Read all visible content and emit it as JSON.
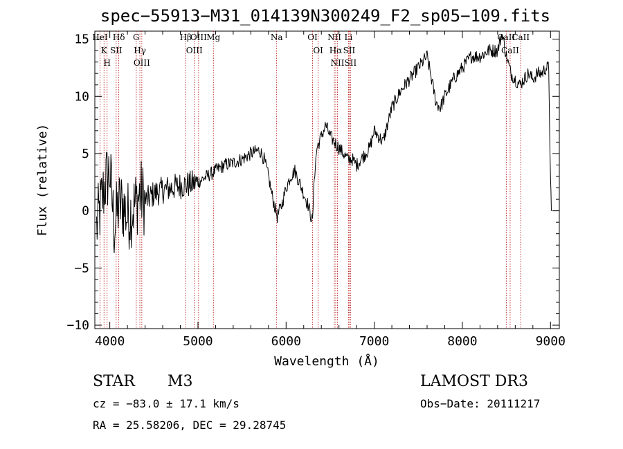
{
  "chart_data": {
    "type": "line",
    "title": "spec−55913−M31_014139N300249_F2_sp05−109.fits",
    "xlabel": "Wavelength (Å)",
    "ylabel": "Flux (relative)",
    "xlim": [
      3830,
      9100
    ],
    "ylim": [
      -10.3,
      15.7
    ],
    "x_ticks": [
      4000,
      5000,
      6000,
      7000,
      8000,
      9000
    ],
    "x_tick_labels": [
      "4000",
      "5000",
      "6000",
      "7000",
      "8000",
      "9000"
    ],
    "y_ticks": [
      -10,
      -5,
      0,
      5,
      10,
      15
    ],
    "y_tick_labels": [
      "−10",
      "−5",
      "0",
      "5",
      "10",
      "15"
    ],
    "grid": false,
    "series": [
      {
        "name": "spectrum",
        "color": "#000000",
        "x": [
          3850,
          3900,
          3950,
          4000,
          4050,
          4100,
          4150,
          4200,
          4250,
          4300,
          4350,
          4400,
          4500,
          4600,
          4700,
          4800,
          4900,
          5000,
          5100,
          5200,
          5300,
          5400,
          5500,
          5600,
          5700,
          5750,
          5800,
          5850,
          5900,
          5950,
          6000,
          6050,
          6100,
          6150,
          6200,
          6250,
          6300,
          6320,
          6350,
          6400,
          6450,
          6500,
          6550,
          6600,
          6650,
          6700,
          6750,
          6800,
          6850,
          6900,
          6950,
          7000,
          7050,
          7100,
          7150,
          7200,
          7300,
          7400,
          7500,
          7550,
          7600,
          7650,
          7700,
          7750,
          7800,
          7900,
          8000,
          8100,
          8200,
          8300,
          8400,
          8450,
          8500,
          8550,
          8600,
          8650,
          8700,
          8750,
          8800,
          8850,
          8900,
          8950,
          8980,
          9000,
          9010
        ],
        "y": [
          -1.5,
          0.5,
          2.5,
          3.5,
          -1.5,
          0.5,
          0.5,
          -0.5,
          0.0,
          0.8,
          1.5,
          0.8,
          1.5,
          1.8,
          2.0,
          2.2,
          2.3,
          2.5,
          3.0,
          3.5,
          4.0,
          4.2,
          4.5,
          5.0,
          5.3,
          4.5,
          3.0,
          1.0,
          -0.5,
          0.5,
          2.0,
          3.0,
          3.5,
          2.5,
          1.5,
          0.5,
          -1.0,
          3.0,
          5.5,
          6.5,
          7.5,
          6.5,
          6.0,
          5.5,
          5.0,
          4.5,
          4.5,
          4.0,
          4.5,
          5.0,
          5.5,
          7.0,
          6.5,
          6.0,
          7.5,
          9.0,
          10.5,
          11.5,
          12.5,
          13.0,
          13.5,
          11.5,
          9.5,
          9.0,
          10.0,
          11.5,
          12.5,
          13.5,
          13.5,
          14.0,
          14.0,
          15.5,
          13.5,
          12.0,
          11.5,
          11.0,
          11.5,
          12.0,
          11.5,
          12.0,
          12.0,
          12.5,
          12.5,
          2.5,
          0.0
        ]
      }
    ],
    "line_markers": [
      {
        "wavelength": 3889,
        "label": "HeI"
      },
      {
        "wavelength": 3934,
        "label": "K"
      },
      {
        "wavelength": 3969,
        "label": "H"
      },
      {
        "wavelength": 4102,
        "label": "Hδ"
      },
      {
        "wavelength": 4072,
        "label": "SII"
      },
      {
        "wavelength": 4300,
        "label": "G"
      },
      {
        "wavelength": 4341,
        "label": "Hγ"
      },
      {
        "wavelength": 4363,
        "label": "OIII"
      },
      {
        "wavelength": 4861,
        "label": "Hβ"
      },
      {
        "wavelength": 4959,
        "label": "OIII"
      },
      {
        "wavelength": 5007,
        "label": "OIII"
      },
      {
        "wavelength": 5175,
        "label": "Mg"
      },
      {
        "wavelength": 5893,
        "label": "Na"
      },
      {
        "wavelength": 6300,
        "label": "OI"
      },
      {
        "wavelength": 6364,
        "label": "OI"
      },
      {
        "wavelength": 6548,
        "label": "NII"
      },
      {
        "wavelength": 6563,
        "label": "Hα"
      },
      {
        "wavelength": 6583,
        "label": "NII"
      },
      {
        "wavelength": 6708,
        "label": "Li"
      },
      {
        "wavelength": 6716,
        "label": "SII"
      },
      {
        "wavelength": 6731,
        "label": "SII"
      },
      {
        "wavelength": 8498,
        "label": "CaII"
      },
      {
        "wavelength": 8542,
        "label": "CaII"
      },
      {
        "wavelength": 8662,
        "label": "CaII"
      }
    ],
    "marker_color": "#b40000"
  },
  "info": {
    "object_class": "STAR",
    "subclass": "M3",
    "survey": "LAMOST DR3",
    "cz": "cz = −83.0 ± 17.1 km/s",
    "obs_date": "Obs−Date: 20111217",
    "coords": "RA =  25.58206, DEC =  29.28745"
  }
}
